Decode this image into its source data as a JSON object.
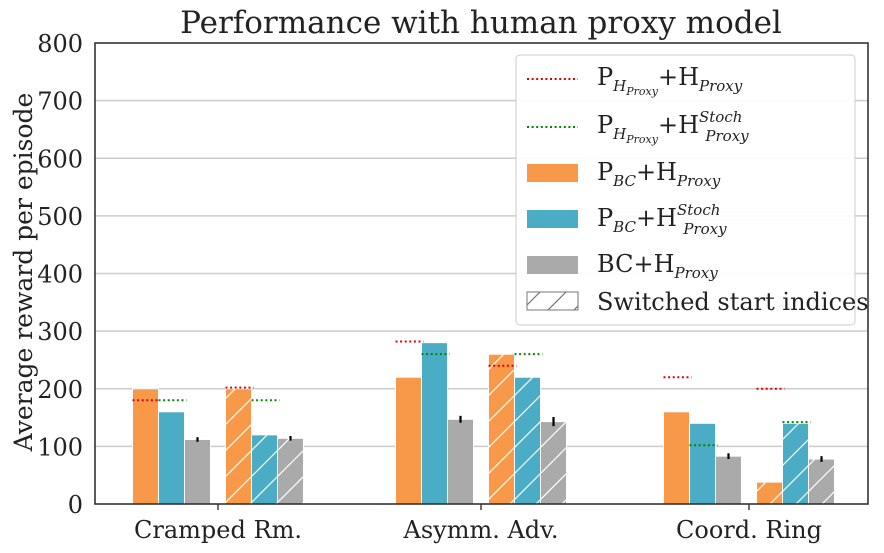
{
  "chart_data": {
    "type": "bar",
    "title": "Performance with human proxy model",
    "xlabel": "",
    "ylabel": "Average reward per episode",
    "ylim": [
      0,
      800
    ],
    "yticks": [
      0,
      100,
      200,
      300,
      400,
      500,
      600,
      700,
      800
    ],
    "grid": "horizontal",
    "legend_position": "top-right",
    "categories": [
      "Cramped Rm.",
      "Asymm. Adv.",
      "Coord. Ring"
    ],
    "start_index_groups": [
      "original",
      "switched"
    ],
    "series": [
      {
        "key": "pbc_hproxy",
        "kind": "bar",
        "color": "#F8994A",
        "values_original": [
          200,
          220,
          160
        ],
        "values_switched": [
          200,
          260,
          38
        ]
      },
      {
        "key": "pbc_hproxy_stoch",
        "kind": "bar",
        "color": "#4BACC6",
        "values_original": [
          160,
          280,
          140
        ],
        "values_switched": [
          120,
          220,
          140
        ]
      },
      {
        "key": "bc_hproxy",
        "kind": "bar",
        "color": "#AAAAAA",
        "values_original": [
          112,
          147,
          83
        ],
        "values_switched": [
          114,
          143,
          78
        ],
        "error_original": [
          4,
          6,
          5
        ],
        "error_switched": [
          4,
          8,
          5
        ]
      },
      {
        "key": "phproxy_hproxy",
        "kind": "dotted-line",
        "color": "#E00000",
        "values_original": [
          180,
          282,
          220
        ],
        "values_switched": [
          202,
          240,
          200
        ]
      },
      {
        "key": "phproxy_hproxy_stoch",
        "kind": "dotted-line",
        "color": "#008800",
        "values_original": [
          180,
          260,
          102
        ],
        "values_switched": [
          180,
          260,
          142
        ]
      }
    ],
    "legend": [
      {
        "key": "phproxy_hproxy",
        "symbol": "dotted-red",
        "main": "P",
        "sub1": "H",
        "subsub1": "Proxy",
        "plus": "+H",
        "sub2": "Proxy",
        "sup2": ""
      },
      {
        "key": "phproxy_hproxy_stoch",
        "symbol": "dotted-green",
        "main": "P",
        "sub1": "H",
        "subsub1": "Proxy",
        "plus": "+H",
        "sub2": "Proxy",
        "sup2": "Stoch"
      },
      {
        "key": "pbc_hproxy",
        "symbol": "bar-orange",
        "main": "P",
        "sub1": "BC",
        "subsub1": "",
        "plus": "+H",
        "sub2": "Proxy",
        "sup2": ""
      },
      {
        "key": "pbc_hproxy_stoch",
        "symbol": "bar-blue",
        "main": "P",
        "sub1": "BC",
        "subsub1": "",
        "plus": "+H",
        "sub2": "Proxy",
        "sup2": "Stoch"
      },
      {
        "key": "bc_hproxy",
        "symbol": "bar-gray",
        "main": "BC",
        "sub1": "",
        "subsub1": "",
        "plus": "+H",
        "sub2": "Proxy",
        "sup2": ""
      },
      {
        "key": "switched",
        "symbol": "hatch",
        "text": "Switched start indices"
      }
    ]
  }
}
